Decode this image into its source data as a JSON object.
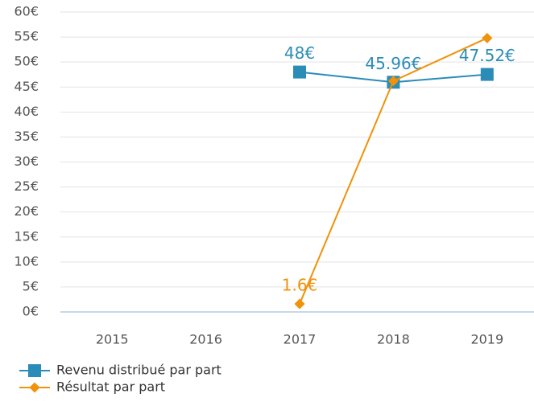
{
  "chart_data": {
    "type": "line",
    "categories": [
      "2015",
      "2016",
      "2017",
      "2018",
      "2019"
    ],
    "series": [
      {
        "name": "Revenu distribué par part",
        "color": "#2b8cb8",
        "marker": "square",
        "values": [
          null,
          null,
          48,
          45.96,
          47.52
        ],
        "value_labels": [
          null,
          null,
          "48€",
          "45.96€",
          "47.52€"
        ]
      },
      {
        "name": "Résultat par part",
        "color": "#f0920a",
        "marker": "diamond",
        "values": [
          null,
          null,
          1.6,
          46.2,
          54.8
        ],
        "value_labels": [
          null,
          null,
          "1.6€",
          null,
          null
        ]
      }
    ],
    "ylim": [
      0,
      60
    ],
    "yticks": [
      {
        "value": 0,
        "label": "0€"
      },
      {
        "value": 5,
        "label": "5€"
      },
      {
        "value": 10,
        "label": "10€"
      },
      {
        "value": 15,
        "label": "15€"
      },
      {
        "value": 20,
        "label": "20€"
      },
      {
        "value": 25,
        "label": "25€"
      },
      {
        "value": 30,
        "label": "30€"
      },
      {
        "value": 35,
        "label": "35€"
      },
      {
        "value": 40,
        "label": "40€"
      },
      {
        "value": 45,
        "label": "45€"
      },
      {
        "value": 50,
        "label": "50€"
      },
      {
        "value": 55,
        "label": "55€"
      },
      {
        "value": 60,
        "label": "60€"
      }
    ],
    "grid": true,
    "legend": "bottom-left"
  }
}
